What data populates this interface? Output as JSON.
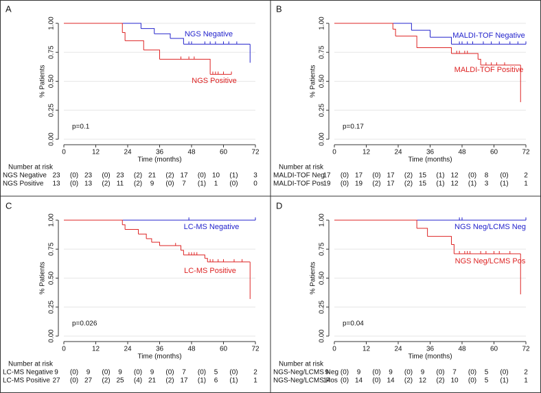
{
  "chart_data": [
    {
      "type": "step",
      "panel": "A",
      "annotation": "p=0.1",
      "x_label": "Time (months)",
      "y_label": "% Patients",
      "xlim": [
        0,
        72
      ],
      "xticks": [
        0,
        12,
        24,
        36,
        48,
        60,
        72
      ],
      "ylim": [
        0,
        1
      ],
      "yticks": [
        {
          "value": 0,
          "label": "0.00"
        },
        {
          "value": 0.25,
          "label": "0.25"
        },
        {
          "value": 0.5,
          "label": "0.50"
        },
        {
          "value": 0.75,
          "label": "0.75"
        },
        {
          "value": 1,
          "label": "1.00"
        }
      ],
      "grid": true,
      "series": [
        {
          "name": "NGS Negative",
          "color": "#2222cc",
          "x": [
            0,
            29,
            34,
            40,
            45,
            70,
            70
          ],
          "values": [
            1,
            0.955,
            0.91,
            0.87,
            0.82,
            0.82,
            0.66
          ],
          "censored_x": [
            47,
            48,
            53,
            55,
            57,
            60,
            62,
            65
          ]
        },
        {
          "name": "NGS Positive",
          "color": "#dd2222",
          "x": [
            0,
            22,
            23,
            30,
            36,
            55,
            63
          ],
          "values": [
            1,
            0.92,
            0.85,
            0.77,
            0.69,
            0.56,
            0.56
          ],
          "censored_x": [
            44,
            47,
            49,
            56,
            57,
            58,
            60,
            63
          ]
        }
      ],
      "risk_table": {
        "title": "Number at risk",
        "rows": [
          {
            "name": "NGS Negative",
            "values": [
              23,
              23,
              23,
              21,
              17,
              10,
              3
            ],
            "censored": [
              "(0)",
              "(0)",
              "(2)",
              "(2)",
              "(0)",
              "(1)"
            ]
          },
          {
            "name": "NGS Positive",
            "values": [
              13,
              13,
              11,
              9,
              7,
              1,
              0
            ],
            "censored": [
              "(0)",
              "(2)",
              "(2)",
              "(0)",
              "(1)",
              "(0)"
            ]
          }
        ]
      }
    },
    {
      "type": "step",
      "panel": "B",
      "annotation": "p=0.17",
      "x_label": "Time (months)",
      "y_label": "% Patients",
      "xlim": [
        0,
        72
      ],
      "xticks": [
        0,
        12,
        24,
        36,
        48,
        60,
        72
      ],
      "ylim": [
        0,
        1
      ],
      "yticks": [
        {
          "value": 0,
          "label": "0.00"
        },
        {
          "value": 0.25,
          "label": "0.25"
        },
        {
          "value": 0.5,
          "label": "0.50"
        },
        {
          "value": 0.75,
          "label": "0.75"
        },
        {
          "value": 1,
          "label": "1.00"
        }
      ],
      "grid": true,
      "series": [
        {
          "name": "MALDI-TOF Negative",
          "color": "#2222cc",
          "x": [
            0,
            29,
            36,
            44,
            72
          ],
          "values": [
            1,
            0.94,
            0.88,
            0.82,
            0.82
          ],
          "censored_x": [
            47,
            48,
            50,
            52,
            56,
            59,
            62,
            66,
            69,
            72
          ]
        },
        {
          "name": "MALDI-TOF Positive",
          "color": "#dd2222",
          "x": [
            0,
            22,
            23,
            31,
            44,
            54,
            55,
            70,
            70
          ],
          "values": [
            1,
            0.95,
            0.89,
            0.79,
            0.74,
            0.69,
            0.64,
            0.64,
            0.32
          ],
          "censored_x": [
            46,
            47,
            49,
            50,
            57,
            59,
            61,
            64
          ]
        }
      ],
      "risk_table": {
        "title": "Number at risk",
        "rows": [
          {
            "name": "MALDI-TOF Neg",
            "values": [
              17,
              17,
              17,
              15,
              12,
              8,
              2
            ],
            "censored": [
              "(0)",
              "(0)",
              "(2)",
              "(1)",
              "(0)",
              "(0)"
            ]
          },
          {
            "name": "MALDI-TOF Pos",
            "values": [
              19,
              19,
              17,
              15,
              12,
              3,
              1
            ],
            "censored": [
              "(0)",
              "(2)",
              "(2)",
              "(1)",
              "(1)",
              "(1)"
            ]
          }
        ]
      }
    },
    {
      "type": "step",
      "panel": "C",
      "annotation": "p=0.026",
      "x_label": "Time (months)",
      "y_label": "% Patients",
      "xlim": [
        0,
        72
      ],
      "xticks": [
        0,
        12,
        24,
        36,
        48,
        60,
        72
      ],
      "ylim": [
        0,
        1
      ],
      "yticks": [
        {
          "value": 0,
          "label": "0.00"
        },
        {
          "value": 0.25,
          "label": "0.25"
        },
        {
          "value": 0.5,
          "label": "0.50"
        },
        {
          "value": 0.75,
          "label": "0.75"
        },
        {
          "value": 1,
          "label": "1.00"
        }
      ],
      "grid": true,
      "series": [
        {
          "name": "LC-MS Negative",
          "color": "#2222cc",
          "x": [
            0,
            72
          ],
          "values": [
            1,
            1
          ],
          "censored_x": [
            47,
            72
          ]
        },
        {
          "name": "LC-MS Positive",
          "color": "#dd2222",
          "x": [
            0,
            22,
            23,
            28,
            31,
            33,
            36,
            44,
            45,
            53,
            54,
            70,
            70
          ],
          "values": [
            1,
            0.96,
            0.92,
            0.88,
            0.84,
            0.81,
            0.78,
            0.74,
            0.7,
            0.67,
            0.64,
            0.64,
            0.32
          ],
          "censored_x": [
            42,
            47,
            48,
            49,
            50,
            55,
            56,
            58,
            60,
            64,
            67
          ]
        }
      ],
      "risk_table": {
        "title": "Number at risk",
        "rows": [
          {
            "name": "LC-MS Negative",
            "values": [
              9,
              9,
              9,
              9,
              7,
              5,
              2
            ],
            "censored": [
              "(0)",
              "(0)",
              "(0)",
              "(0)",
              "(0)",
              "(0)"
            ]
          },
          {
            "name": "LC-MS Positive",
            "values": [
              27,
              27,
              25,
              21,
              17,
              6,
              1
            ],
            "censored": [
              "(0)",
              "(2)",
              "(4)",
              "(2)",
              "(1)",
              "(1)"
            ]
          }
        ]
      }
    },
    {
      "type": "step",
      "panel": "D",
      "annotation": "p=0.04",
      "x_label": "Time (months)",
      "y_label": "% Patients",
      "xlim": [
        0,
        72
      ],
      "xticks": [
        0,
        12,
        24,
        36,
        48,
        60,
        72
      ],
      "ylim": [
        0,
        1
      ],
      "yticks": [
        {
          "value": 0,
          "label": "0.00"
        },
        {
          "value": 0.25,
          "label": "0.25"
        },
        {
          "value": 0.5,
          "label": "0.50"
        },
        {
          "value": 0.75,
          "label": "0.75"
        },
        {
          "value": 1,
          "label": "1.00"
        }
      ],
      "grid": true,
      "series": [
        {
          "name": "NGS Neg/LCMS Neg",
          "color": "#2222cc",
          "x": [
            0,
            72
          ],
          "values": [
            1,
            1
          ],
          "censored_x": [
            47,
            48,
            72
          ]
        },
        {
          "name": "NGS Neg/LCMS Pos",
          "color": "#dd2222",
          "x": [
            0,
            31,
            35,
            44,
            45,
            70,
            70
          ],
          "values": [
            1,
            0.93,
            0.86,
            0.79,
            0.71,
            0.71,
            0.36
          ],
          "censored_x": [
            47,
            49,
            50,
            51,
            55,
            57,
            60,
            62,
            66
          ]
        }
      ],
      "risk_table": {
        "title": "Number at risk",
        "rows": [
          {
            "name": "NGS-Neg/LCMS Neg",
            "values": [
              9,
              9,
              9,
              9,
              7,
              5,
              2
            ],
            "censored": [
              "(0)",
              "(0)",
              "(0)",
              "(0)",
              "(0)",
              "(0)"
            ]
          },
          {
            "name": "NGS-Neg/LCMS Pos",
            "values": [
              14,
              14,
              14,
              12,
              10,
              5,
              1
            ],
            "censored": [
              "(0)",
              "(0)",
              "(2)",
              "(2)",
              "(0)",
              "(1)"
            ]
          }
        ]
      }
    }
  ]
}
